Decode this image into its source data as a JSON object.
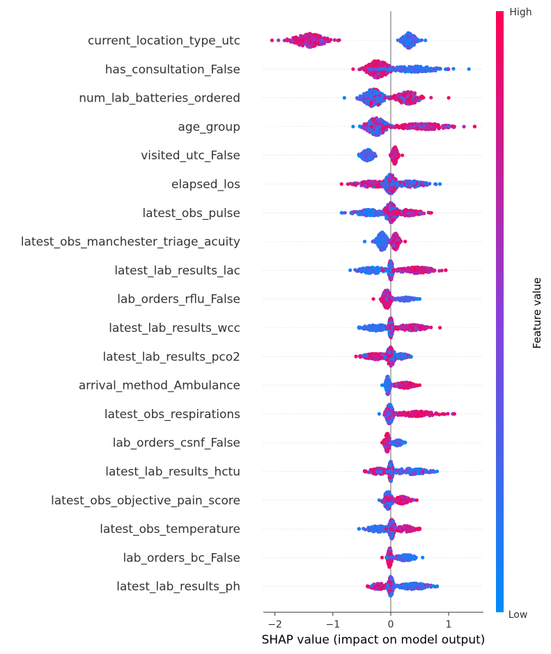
{
  "chart_data": {
    "type": "scatter",
    "subtype": "shap-beeswarm",
    "xlabel": "SHAP value (impact on model output)",
    "xlim": [
      -2.2,
      1.6
    ],
    "xticks": [
      -2,
      -1,
      0,
      1
    ],
    "xtick_labels": [
      "−2",
      "−1",
      "0",
      "1"
    ],
    "zero_line": 0,
    "colorbar": {
      "title": "Feature value",
      "high_label": "High",
      "low_label": "Low",
      "low_color": "#008bfb",
      "high_color": "#ff0052"
    },
    "features": [
      {
        "name": "current_location_type_utc",
        "min": -2.05,
        "max": 0.6,
        "clusters": [
          {
            "center": -1.4,
            "spread": 0.32,
            "width": 0.65,
            "count": 230,
            "low_frac": 0.0
          },
          {
            "center": 0.32,
            "spread": 0.13,
            "width": 0.75,
            "count": 160,
            "low_frac": 1.0
          }
        ]
      },
      {
        "name": "has_consultation_False",
        "min": -0.65,
        "max": 1.35,
        "clusters": [
          {
            "center": -0.22,
            "spread": 0.22,
            "width": 0.85,
            "count": 230,
            "low_frac": 0.0
          },
          {
            "center": 0.4,
            "spread": 0.5,
            "width": 0.28,
            "count": 170,
            "low_frac": 1.0
          }
        ]
      },
      {
        "name": "num_lab_batteries_ordered",
        "min": -0.8,
        "max": 1.0,
        "clusters": [
          {
            "center": -0.3,
            "spread": 0.2,
            "width": 0.85,
            "count": 230,
            "low_frac": 0.9
          },
          {
            "center": 0.3,
            "spread": 0.25,
            "width": 0.6,
            "count": 180,
            "low_frac": 0.08
          }
        ]
      },
      {
        "name": "age_group",
        "min": -0.65,
        "max": 1.45,
        "clusters": [
          {
            "center": -0.25,
            "spread": 0.2,
            "width": 0.85,
            "count": 230,
            "low_frac": 0.55
          },
          {
            "center": 0.55,
            "spread": 0.5,
            "width": 0.3,
            "count": 190,
            "low_frac": 0.05
          }
        ]
      },
      {
        "name": "visited_utc_False",
        "min": -0.55,
        "max": 0.2,
        "clusters": [
          {
            "center": -0.4,
            "spread": 0.12,
            "width": 0.55,
            "count": 150,
            "low_frac": 1.0
          },
          {
            "center": 0.07,
            "spread": 0.05,
            "width": 0.85,
            "count": 150,
            "low_frac": 0.0
          }
        ]
      },
      {
        "name": "elapsed_los",
        "min": -0.85,
        "max": 0.85,
        "clusters": [
          {
            "center": -0.3,
            "spread": 0.35,
            "width": 0.3,
            "count": 150,
            "low_frac": 0.05
          },
          {
            "center": 0.0,
            "spread": 0.12,
            "width": 0.95,
            "count": 200,
            "low_frac": 0.5
          },
          {
            "center": 0.35,
            "spread": 0.3,
            "width": 0.3,
            "count": 120,
            "low_frac": 0.9
          }
        ]
      },
      {
        "name": "latest_obs_pulse",
        "min": -0.85,
        "max": 0.7,
        "clusters": [
          {
            "center": -0.35,
            "spread": 0.3,
            "width": 0.3,
            "count": 140,
            "low_frac": 0.95
          },
          {
            "center": 0.0,
            "spread": 0.12,
            "width": 0.95,
            "count": 200,
            "low_frac": 0.45
          },
          {
            "center": 0.3,
            "spread": 0.25,
            "width": 0.3,
            "count": 120,
            "low_frac": 0.05
          }
        ]
      },
      {
        "name": "latest_obs_manchester_triage_acuity",
        "min": -0.45,
        "max": 0.25,
        "clusters": [
          {
            "center": -0.15,
            "spread": 0.1,
            "width": 0.9,
            "count": 150,
            "low_frac": 1.0
          },
          {
            "center": 0.08,
            "spread": 0.07,
            "width": 0.8,
            "count": 140,
            "low_frac": 0.05
          }
        ]
      },
      {
        "name": "latest_lab_results_lac",
        "min": -0.7,
        "max": 0.95,
        "clusters": [
          {
            "center": -0.3,
            "spread": 0.3,
            "width": 0.3,
            "count": 130,
            "low_frac": 1.0
          },
          {
            "center": 0.0,
            "spread": 0.04,
            "width": 0.95,
            "count": 150,
            "low_frac": 0.5
          },
          {
            "center": 0.45,
            "spread": 0.35,
            "width": 0.3,
            "count": 150,
            "low_frac": 0.0
          }
        ]
      },
      {
        "name": "lab_orders_rflu_False",
        "min": -0.3,
        "max": 0.5,
        "clusters": [
          {
            "center": -0.07,
            "spread": 0.08,
            "width": 0.9,
            "count": 150,
            "low_frac": 0.0
          },
          {
            "center": 0.25,
            "spread": 0.18,
            "width": 0.2,
            "count": 80,
            "low_frac": 1.0
          }
        ]
      },
      {
        "name": "latest_lab_results_wcc",
        "min": -0.55,
        "max": 0.85,
        "clusters": [
          {
            "center": -0.25,
            "spread": 0.25,
            "width": 0.3,
            "count": 120,
            "low_frac": 0.95
          },
          {
            "center": 0.0,
            "spread": 0.04,
            "width": 0.95,
            "count": 160,
            "low_frac": 0.4
          },
          {
            "center": 0.35,
            "spread": 0.3,
            "width": 0.3,
            "count": 130,
            "low_frac": 0.05
          }
        ]
      },
      {
        "name": "latest_lab_results_pco2",
        "min": -0.6,
        "max": 0.35,
        "clusters": [
          {
            "center": -0.25,
            "spread": 0.25,
            "width": 0.3,
            "count": 120,
            "low_frac": 0.05
          },
          {
            "center": 0.0,
            "spread": 0.08,
            "width": 0.9,
            "count": 170,
            "low_frac": 0.45
          },
          {
            "center": 0.2,
            "spread": 0.12,
            "width": 0.3,
            "count": 80,
            "low_frac": 0.7
          }
        ]
      },
      {
        "name": "arrival_method_Ambulance",
        "min": -0.15,
        "max": 0.5,
        "clusters": [
          {
            "center": -0.05,
            "spread": 0.04,
            "width": 0.9,
            "count": 120,
            "low_frac": 1.0
          },
          {
            "center": 0.25,
            "spread": 0.18,
            "width": 0.3,
            "count": 110,
            "low_frac": 0.0
          }
        ]
      },
      {
        "name": "latest_obs_respirations",
        "min": -0.2,
        "max": 1.1,
        "clusters": [
          {
            "center": -0.02,
            "spread": 0.07,
            "width": 0.95,
            "count": 180,
            "low_frac": 0.7
          },
          {
            "center": 0.45,
            "spread": 0.4,
            "width": 0.25,
            "count": 150,
            "low_frac": 0.0
          }
        ]
      },
      {
        "name": "lab_orders_csnf_False",
        "min": -0.15,
        "max": 0.25,
        "clusters": [
          {
            "center": -0.06,
            "spread": 0.05,
            "width": 0.9,
            "count": 130,
            "low_frac": 0.0
          },
          {
            "center": 0.12,
            "spread": 0.1,
            "width": 0.3,
            "count": 80,
            "low_frac": 1.0
          }
        ]
      },
      {
        "name": "latest_lab_results_hctu",
        "min": -0.45,
        "max": 0.8,
        "clusters": [
          {
            "center": -0.2,
            "spread": 0.2,
            "width": 0.3,
            "count": 100,
            "low_frac": 0.1
          },
          {
            "center": 0.0,
            "spread": 0.04,
            "width": 0.95,
            "count": 170,
            "low_frac": 0.45
          },
          {
            "center": 0.35,
            "spread": 0.35,
            "width": 0.3,
            "count": 130,
            "low_frac": 0.9
          }
        ]
      },
      {
        "name": "latest_obs_objective_pain_score",
        "min": -0.2,
        "max": 0.45,
        "clusters": [
          {
            "center": -0.05,
            "spread": 0.08,
            "width": 0.9,
            "count": 140,
            "low_frac": 0.85
          },
          {
            "center": 0.2,
            "spread": 0.15,
            "width": 0.35,
            "count": 120,
            "low_frac": 0.05
          }
        ]
      },
      {
        "name": "latest_obs_temperature",
        "min": -0.55,
        "max": 0.5,
        "clusters": [
          {
            "center": -0.2,
            "spread": 0.25,
            "width": 0.3,
            "count": 110,
            "low_frac": 0.95
          },
          {
            "center": 0.02,
            "spread": 0.06,
            "width": 0.95,
            "count": 170,
            "low_frac": 0.4
          },
          {
            "center": 0.25,
            "spread": 0.2,
            "width": 0.3,
            "count": 90,
            "low_frac": 0.05
          }
        ]
      },
      {
        "name": "lab_orders_bc_False",
        "min": -0.15,
        "max": 0.55,
        "clusters": [
          {
            "center": -0.02,
            "spread": 0.04,
            "width": 0.95,
            "count": 140,
            "low_frac": 0.0
          },
          {
            "center": 0.25,
            "spread": 0.2,
            "width": 0.3,
            "count": 100,
            "low_frac": 1.0
          }
        ]
      },
      {
        "name": "latest_lab_results_ph",
        "min": -0.4,
        "max": 0.8,
        "clusters": [
          {
            "center": -0.2,
            "spread": 0.18,
            "width": 0.3,
            "count": 100,
            "low_frac": 0.05
          },
          {
            "center": 0.0,
            "spread": 0.05,
            "width": 0.95,
            "count": 170,
            "low_frac": 0.45
          },
          {
            "center": 0.4,
            "spread": 0.3,
            "width": 0.3,
            "count": 130,
            "low_frac": 0.95
          }
        ]
      }
    ]
  }
}
